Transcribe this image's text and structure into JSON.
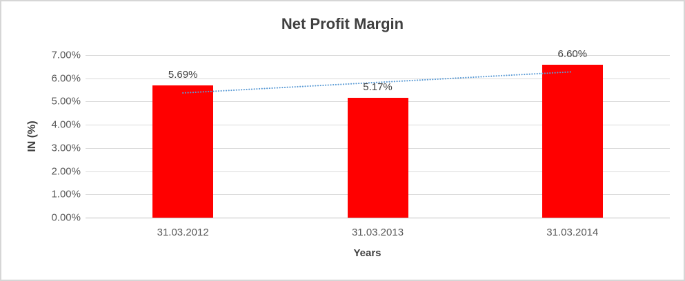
{
  "chart_data": {
    "type": "bar",
    "title": "Net Profit Margin",
    "xlabel": "Years",
    "ylabel": "IN (%)",
    "categories": [
      "31.03.2012",
      "31.03.2013",
      "31.03.2014"
    ],
    "values": [
      5.69,
      5.17,
      6.6
    ],
    "data_labels": [
      "5.69%",
      "5.17%",
      "6.60%"
    ],
    "ylim": [
      0,
      7
    ],
    "ytick_step": 1,
    "ytick_labels": [
      "0.00%",
      "1.00%",
      "2.00%",
      "3.00%",
      "4.00%",
      "5.00%",
      "6.00%",
      "7.00%"
    ],
    "grid": true,
    "legend": "none",
    "bar_color": "#ff0000",
    "gridline_color": "#d9d9d9",
    "axis_line_color": "#bfbfbf",
    "text_color": "#404040",
    "tick_text_color": "#595959",
    "trendline": {
      "type": "linear",
      "style": "dotted",
      "color": "#5b9bd5",
      "start_value": 5.37,
      "end_value": 6.28
    }
  }
}
